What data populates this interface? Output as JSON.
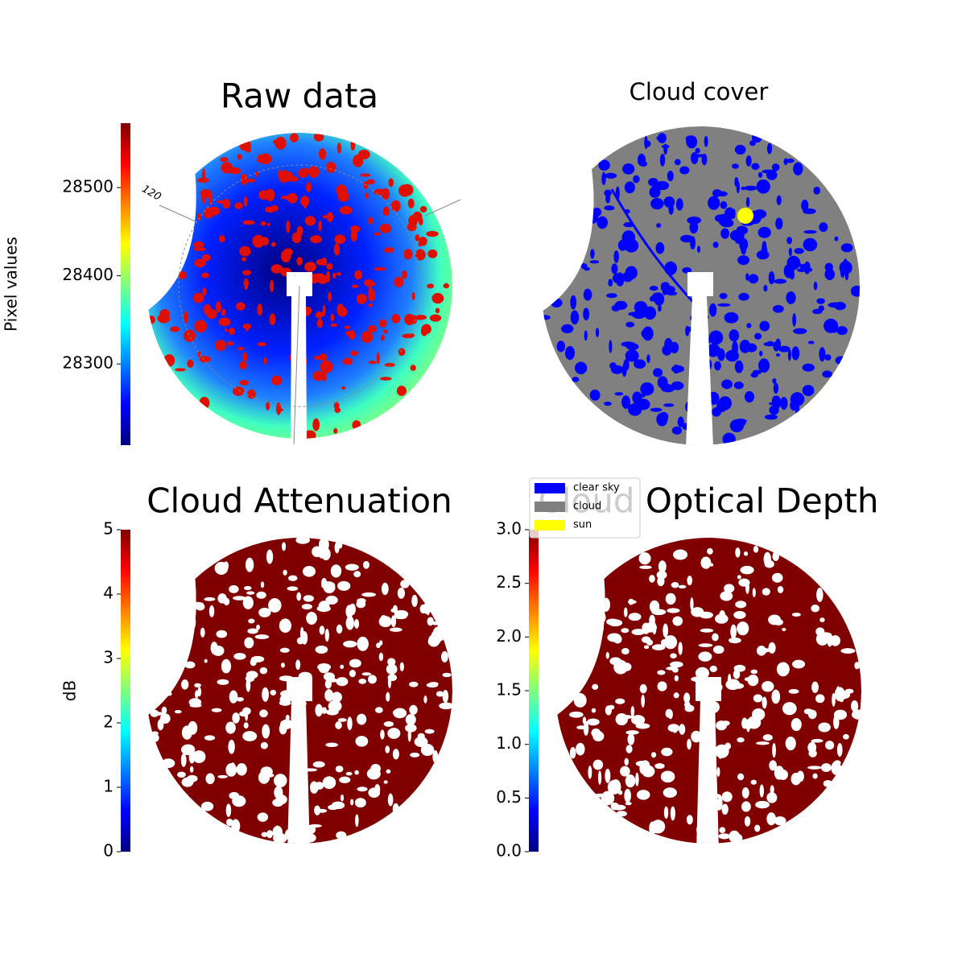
{
  "chart_data": [
    {
      "type": "image",
      "title": "Raw data",
      "colorbar_label": "Pixel values",
      "colormap": "jet",
      "clim": [
        28208,
        28573
      ],
      "cticks": [
        28300,
        28400,
        28500
      ],
      "annotations": [
        "120"
      ]
    },
    {
      "type": "image",
      "title": "Cloud cover",
      "series": [
        {
          "name": "clear sky",
          "color": "#0000ff"
        },
        {
          "name": "cloud",
          "color": "#808080"
        },
        {
          "name": "sun",
          "color": "#ffff00"
        }
      ]
    },
    {
      "type": "image",
      "title": "Cloud Attenuation",
      "colorbar_label": "dB",
      "colormap": "jet",
      "clim": [
        0,
        5
      ],
      "cticks": [
        0,
        1,
        2,
        3,
        4,
        5
      ]
    },
    {
      "type": "image",
      "title": "Cloud Optical Depth",
      "colormap": "jet",
      "clim": [
        0,
        3
      ],
      "cticks": [
        {
          "value": 0,
          "label": "0.0"
        },
        0.5,
        {
          "value": 1,
          "label": "1.0"
        },
        1.5,
        {
          "value": 2,
          "label": "2.0"
        },
        2.5,
        {
          "value": 3,
          "label": "3.0"
        }
      ]
    }
  ]
}
